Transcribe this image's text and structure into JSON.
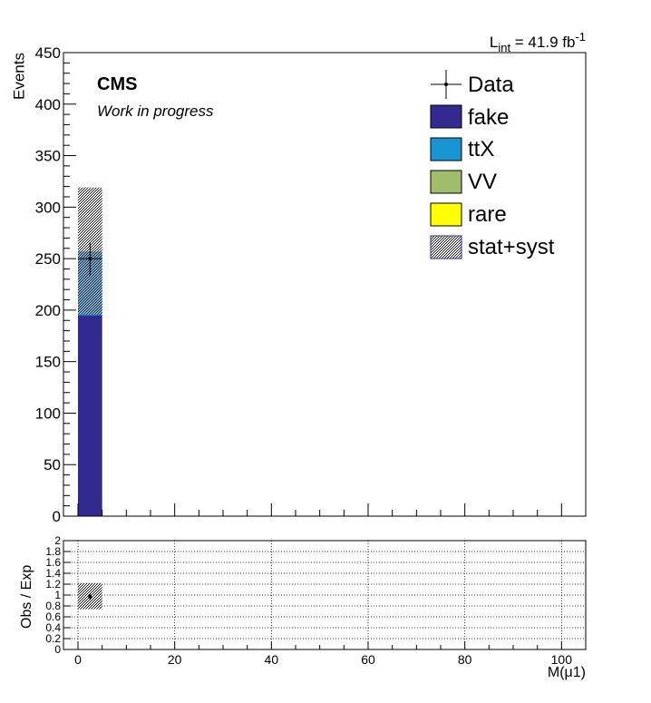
{
  "colors": {
    "fake": "#332a8f",
    "ttX": "#1995d4",
    "VV": "#9fbd6a",
    "rare": "#ffff00",
    "data": "#000000",
    "grid": "#000000"
  },
  "chart_data": [
    {
      "type": "bar",
      "stacked": true,
      "lumi": {
        "prefix": "L",
        "subscript": "int",
        "value": " = 41.9 fb",
        "superscript": "-1"
      },
      "cms_label": "CMS",
      "cms_sublabel": "Work in progress",
      "ylabel": "Events",
      "xlim": [
        -3,
        105
      ],
      "ylim": [
        0,
        450
      ],
      "yticks": [
        "0",
        "50",
        "100",
        "150",
        "200",
        "250",
        "300",
        "350",
        "400",
        "450"
      ],
      "ytick_values": [
        0,
        50,
        100,
        150,
        200,
        250,
        300,
        350,
        400,
        450
      ],
      "bin_edges": [
        0,
        5
      ],
      "series": [
        {
          "name": "fake",
          "color_key": "fake",
          "values": [
            195
          ]
        },
        {
          "name": "ttX",
          "color_key": "ttX",
          "values": [
            62
          ]
        },
        {
          "name": "VV",
          "color_key": "VV",
          "values": [
            0
          ]
        },
        {
          "name": "rare",
          "color_key": "rare",
          "values": [
            0
          ]
        }
      ],
      "uncertainty": {
        "name": "stat+syst",
        "low": [
          196
        ],
        "high": [
          319
        ]
      },
      "data": {
        "name": "Data",
        "x": [
          2.5
        ],
        "y": [
          250
        ],
        "yerr": [
          16
        ],
        "xerr": [
          2.5
        ]
      },
      "legend": [
        "Data",
        "fake",
        "ttX",
        "VV",
        "rare",
        "stat+syst"
      ]
    },
    {
      "type": "scatter",
      "ylabel": "Obs / Exp",
      "xlabel": "M(μ1)",
      "xlim": [
        -3,
        105
      ],
      "ylim": [
        0,
        2
      ],
      "xticks": [
        "0",
        "20",
        "40",
        "60",
        "80",
        "100"
      ],
      "xtick_values": [
        0,
        20,
        40,
        60,
        80,
        100
      ],
      "yticks": [
        "0",
        "0.2",
        "0.4",
        "0.6",
        "0.8",
        "1",
        "1.2",
        "1.4",
        "1.6",
        "1.8",
        "2"
      ],
      "ytick_values": [
        0,
        0.2,
        0.4,
        0.6,
        0.8,
        1,
        1.2,
        1.4,
        1.6,
        1.8,
        2
      ],
      "grid": true,
      "uncertainty": {
        "x": [
          0,
          5
        ],
        "low": [
          0.74
        ],
        "high": [
          1.22
        ]
      },
      "ratio": {
        "x": [
          2.5
        ],
        "y": [
          0.97
        ],
        "yerr": [
          0.06
        ]
      }
    }
  ]
}
